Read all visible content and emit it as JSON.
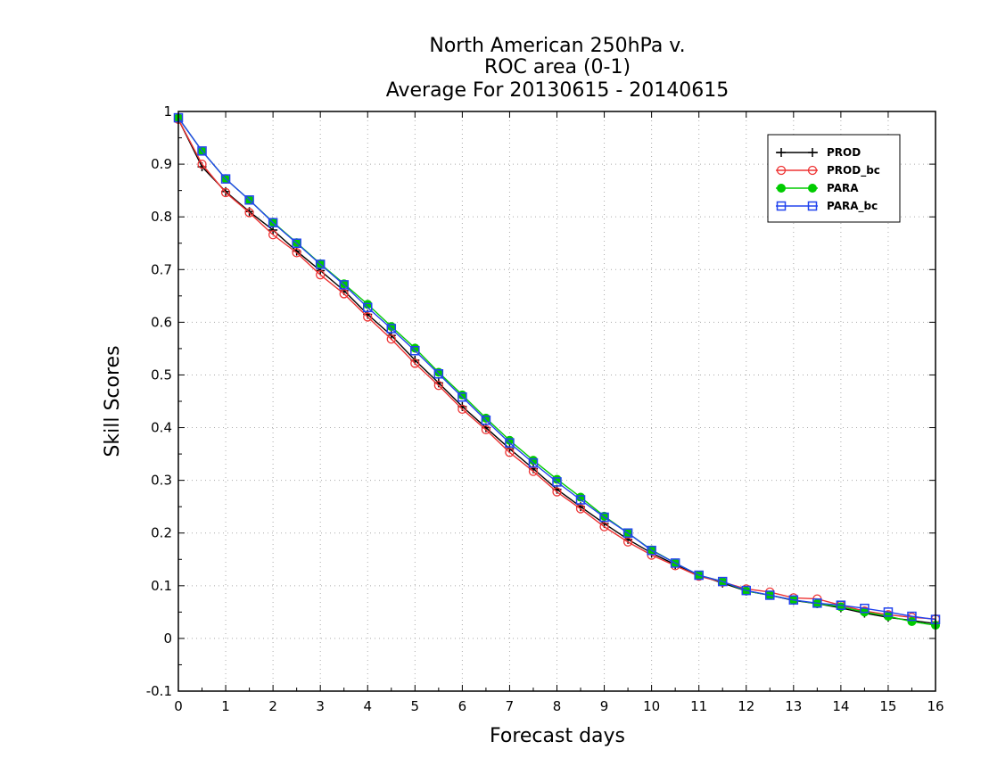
{
  "chart_data": {
    "type": "line",
    "title_lines": [
      "North American 250hPa v.",
      "ROC area (0-1)",
      "Average For 20130615 - 20140615"
    ],
    "xlabel": "Forecast days",
    "ylabel": "Skill Scores",
    "xlim": [
      0,
      16
    ],
    "ylim": [
      -0.1,
      1
    ],
    "x_ticks": [
      "0",
      "1",
      "2",
      "3",
      "4",
      "5",
      "6",
      "7",
      "8",
      "9",
      "10",
      "11",
      "12",
      "13",
      "14",
      "15",
      "16"
    ],
    "y_ticks": [
      "-0.1",
      "0",
      "0.1",
      "0.2",
      "0.3",
      "0.4",
      "0.5",
      "0.6",
      "0.7",
      "0.8",
      "0.9",
      "1"
    ],
    "grid": true,
    "legend_position": "top-right",
    "x": [
      0,
      0.5,
      1,
      1.5,
      2,
      2.5,
      3,
      3.5,
      4,
      4.5,
      5,
      5.5,
      6,
      6.5,
      7,
      7.5,
      8,
      8.5,
      9,
      9.5,
      10,
      10.5,
      11,
      11.5,
      12,
      12.5,
      13,
      13.5,
      14,
      14.5,
      15,
      15.5,
      16
    ],
    "series": [
      {
        "name": "PROD",
        "color": "#000000",
        "marker": "plus",
        "values": [
          0.985,
          0.895,
          0.848,
          0.81,
          0.775,
          0.735,
          0.698,
          0.66,
          0.615,
          0.575,
          0.528,
          0.485,
          0.44,
          0.4,
          0.36,
          0.322,
          0.283,
          0.25,
          0.218,
          0.188,
          0.162,
          0.14,
          0.12,
          0.105,
          0.09,
          0.082,
          0.072,
          0.066,
          0.058,
          0.048,
          0.04,
          0.034,
          0.028
        ]
      },
      {
        "name": "PROD_bc",
        "color": "#ee3333",
        "marker": "circle",
        "values": [
          0.985,
          0.9,
          0.846,
          0.808,
          0.766,
          0.732,
          0.69,
          0.654,
          0.61,
          0.568,
          0.522,
          0.48,
          0.435,
          0.396,
          0.353,
          0.317,
          0.278,
          0.246,
          0.212,
          0.183,
          0.158,
          0.138,
          0.118,
          0.107,
          0.094,
          0.088,
          0.077,
          0.075,
          0.063,
          0.052,
          0.045,
          0.04,
          0.037
        ]
      },
      {
        "name": "PARA",
        "color": "#00cc00",
        "marker": "filled-circle",
        "values": [
          0.988,
          0.925,
          0.872,
          0.832,
          0.79,
          0.751,
          0.711,
          0.673,
          0.634,
          0.592,
          0.551,
          0.505,
          0.462,
          0.418,
          0.376,
          0.338,
          0.302,
          0.268,
          0.232,
          0.2,
          0.168,
          0.143,
          0.12,
          0.108,
          0.09,
          0.082,
          0.073,
          0.066,
          0.06,
          0.05,
          0.042,
          0.032,
          0.025
        ]
      },
      {
        "name": "PARA_bc",
        "color": "#2244ee",
        "marker": "square",
        "values": [
          0.988,
          0.925,
          0.872,
          0.832,
          0.789,
          0.75,
          0.71,
          0.671,
          0.628,
          0.588,
          0.546,
          0.502,
          0.458,
          0.414,
          0.371,
          0.333,
          0.297,
          0.263,
          0.23,
          0.2,
          0.167,
          0.143,
          0.12,
          0.108,
          0.091,
          0.082,
          0.073,
          0.067,
          0.063,
          0.057,
          0.05,
          0.042,
          0.036
        ]
      }
    ]
  }
}
